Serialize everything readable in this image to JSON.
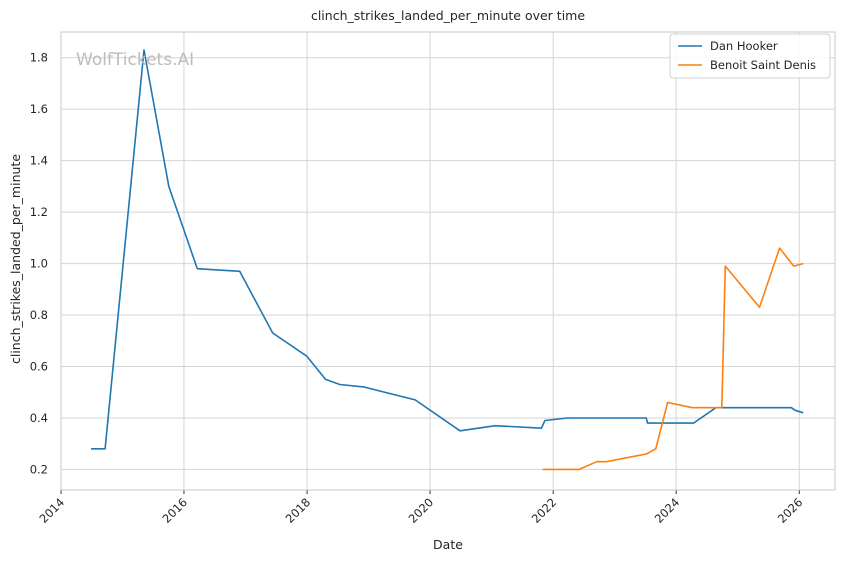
{
  "watermark": "WolfTickets.AI",
  "chart_data": {
    "type": "line",
    "title": "clinch_strikes_landed_per_minute over time",
    "xlabel": "Date",
    "ylabel": "clinch_strikes_landed_per_minute",
    "x_ticks": [
      "2014",
      "2016",
      "2018",
      "2020",
      "2022",
      "2024",
      "2026"
    ],
    "y_ticks": [
      "0.2",
      "0.4",
      "0.6",
      "0.8",
      "1.0",
      "1.2",
      "1.4",
      "1.6",
      "1.8"
    ],
    "xlim": [
      "2014-01-01",
      "2026-08-01"
    ],
    "ylim": [
      0.12,
      1.9
    ],
    "grid": true,
    "legend_position": "top-right",
    "series": [
      {
        "name": "Dan Hooker",
        "color": "#1f77b4",
        "points": [
          [
            "2014-06-28",
            0.28
          ],
          [
            "2014-09-20",
            0.28
          ],
          [
            "2015-05-09",
            1.83
          ],
          [
            "2015-10-03",
            1.3
          ],
          [
            "2016-03-20",
            0.98
          ],
          [
            "2016-11-27",
            0.97
          ],
          [
            "2017-06-11",
            0.73
          ],
          [
            "2017-12-30",
            0.64
          ],
          [
            "2018-04-21",
            0.55
          ],
          [
            "2018-07-14",
            0.53
          ],
          [
            "2018-12-08",
            0.52
          ],
          [
            "2019-10-05",
            0.47
          ],
          [
            "2020-06-27",
            0.35
          ],
          [
            "2021-01-23",
            0.37
          ],
          [
            "2021-10-23",
            0.36
          ],
          [
            "2021-11-13",
            0.39
          ],
          [
            "2022-03-26",
            0.4
          ],
          [
            "2022-09-03",
            0.4
          ],
          [
            "2022-10-22",
            0.4
          ],
          [
            "2023-07-08",
            0.4
          ],
          [
            "2023-07-15",
            0.38
          ],
          [
            "2024-04-13",
            0.38
          ],
          [
            "2024-08-24",
            0.44
          ],
          [
            "2025-11-15",
            0.44
          ],
          [
            "2025-12-06",
            0.43
          ],
          [
            "2026-01-24",
            0.42
          ]
        ]
      },
      {
        "name": "Benoit Saint Denis",
        "color": "#ff7f0e",
        "points": [
          [
            "2021-10-30",
            0.2
          ],
          [
            "2022-06-04",
            0.2
          ],
          [
            "2022-09-17",
            0.23
          ],
          [
            "2022-11-12",
            0.23
          ],
          [
            "2023-07-08",
            0.26
          ],
          [
            "2023-09-02",
            0.28
          ],
          [
            "2023-11-11",
            0.46
          ],
          [
            "2024-04-06",
            0.44
          ],
          [
            "2024-09-28",
            0.44
          ],
          [
            "2024-10-19",
            0.99
          ],
          [
            "2025-05-10",
            0.83
          ],
          [
            "2025-09-06",
            1.06
          ],
          [
            "2025-11-29",
            0.99
          ],
          [
            "2026-01-24",
            1.0
          ]
        ]
      }
    ]
  }
}
